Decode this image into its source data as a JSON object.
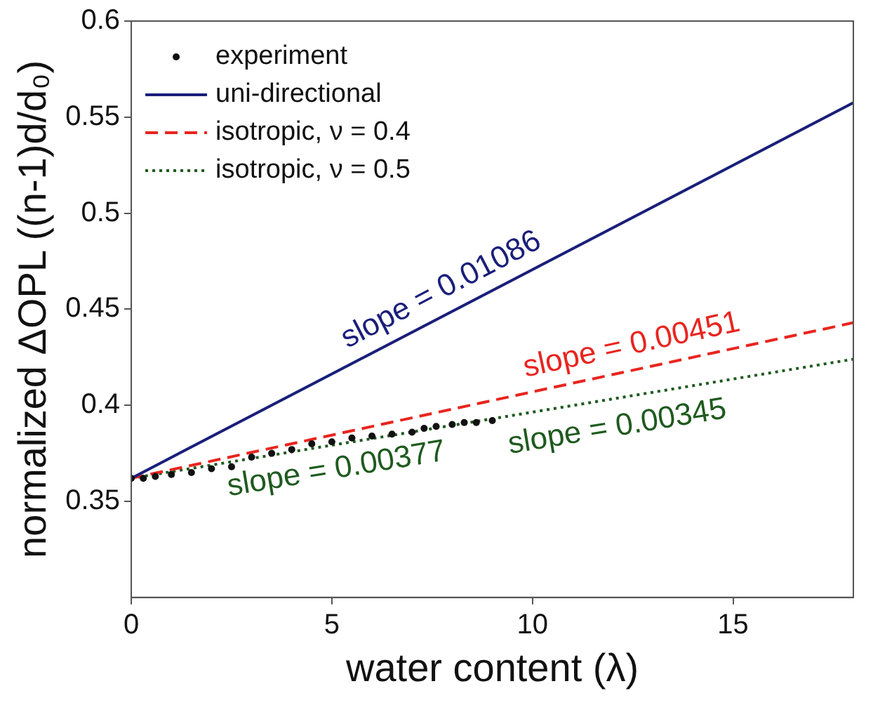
{
  "chart_data": {
    "type": "line",
    "xlabel": "water content (λ)",
    "ylabel": "normalized ΔOPL ((n-1)d/d₀)",
    "xlim": [
      0,
      18
    ],
    "xticks": [
      0,
      5,
      10,
      15
    ],
    "ylim": [
      0.3,
      0.6
    ],
    "yticks": [
      0.35,
      0.4,
      0.45,
      0.5,
      0.55,
      0.6
    ],
    "grid": false,
    "legend": "top left",
    "series": [
      {
        "name": "experiment",
        "type": "scatter",
        "color": "#111111",
        "marker": "circle",
        "x": [
          0,
          0.3,
          0.6,
          1,
          1.5,
          2,
          2.5,
          3,
          3.5,
          4,
          4.5,
          5,
          5.5,
          6,
          6.5,
          7,
          7.3,
          7.6,
          8,
          8.3,
          8.6,
          9
        ],
        "values": [
          0.362,
          0.362,
          0.363,
          0.364,
          0.365,
          0.367,
          0.368,
          0.373,
          0.375,
          0.377,
          0.38,
          0.381,
          0.383,
          0.384,
          0.385,
          0.386,
          0.388,
          0.389,
          0.39,
          0.391,
          0.391,
          0.392
        ]
      },
      {
        "name": "uni-directional",
        "type": "line",
        "color": "#1a1f7a",
        "line_style": "solid",
        "x": [
          0,
          18
        ],
        "values": [
          0.362,
          0.5575
        ]
      },
      {
        "name": "isotropic, ν = 0.4",
        "type": "line",
        "color": "#e8251f",
        "line_style": "dashed",
        "x": [
          0,
          18
        ],
        "values": [
          0.362,
          0.443
        ]
      },
      {
        "name": "isotropic, ν = 0.5",
        "type": "line",
        "color": "#1f5a1f",
        "line_style": "dotted",
        "x": [
          0,
          18
        ],
        "values": [
          0.362,
          0.424
        ]
      }
    ],
    "annotations": [
      {
        "text": "slope = 0.01086",
        "x": 8,
        "y": 0.449
      },
      {
        "text": "slope = 0.00451",
        "x": 12.6,
        "y": 0.419
      },
      {
        "text": "slope = 0.00345",
        "x": 12,
        "y": 0.403
      },
      {
        "text": "slope = 0.00377",
        "x": 5,
        "y": 0.381
      }
    ]
  }
}
